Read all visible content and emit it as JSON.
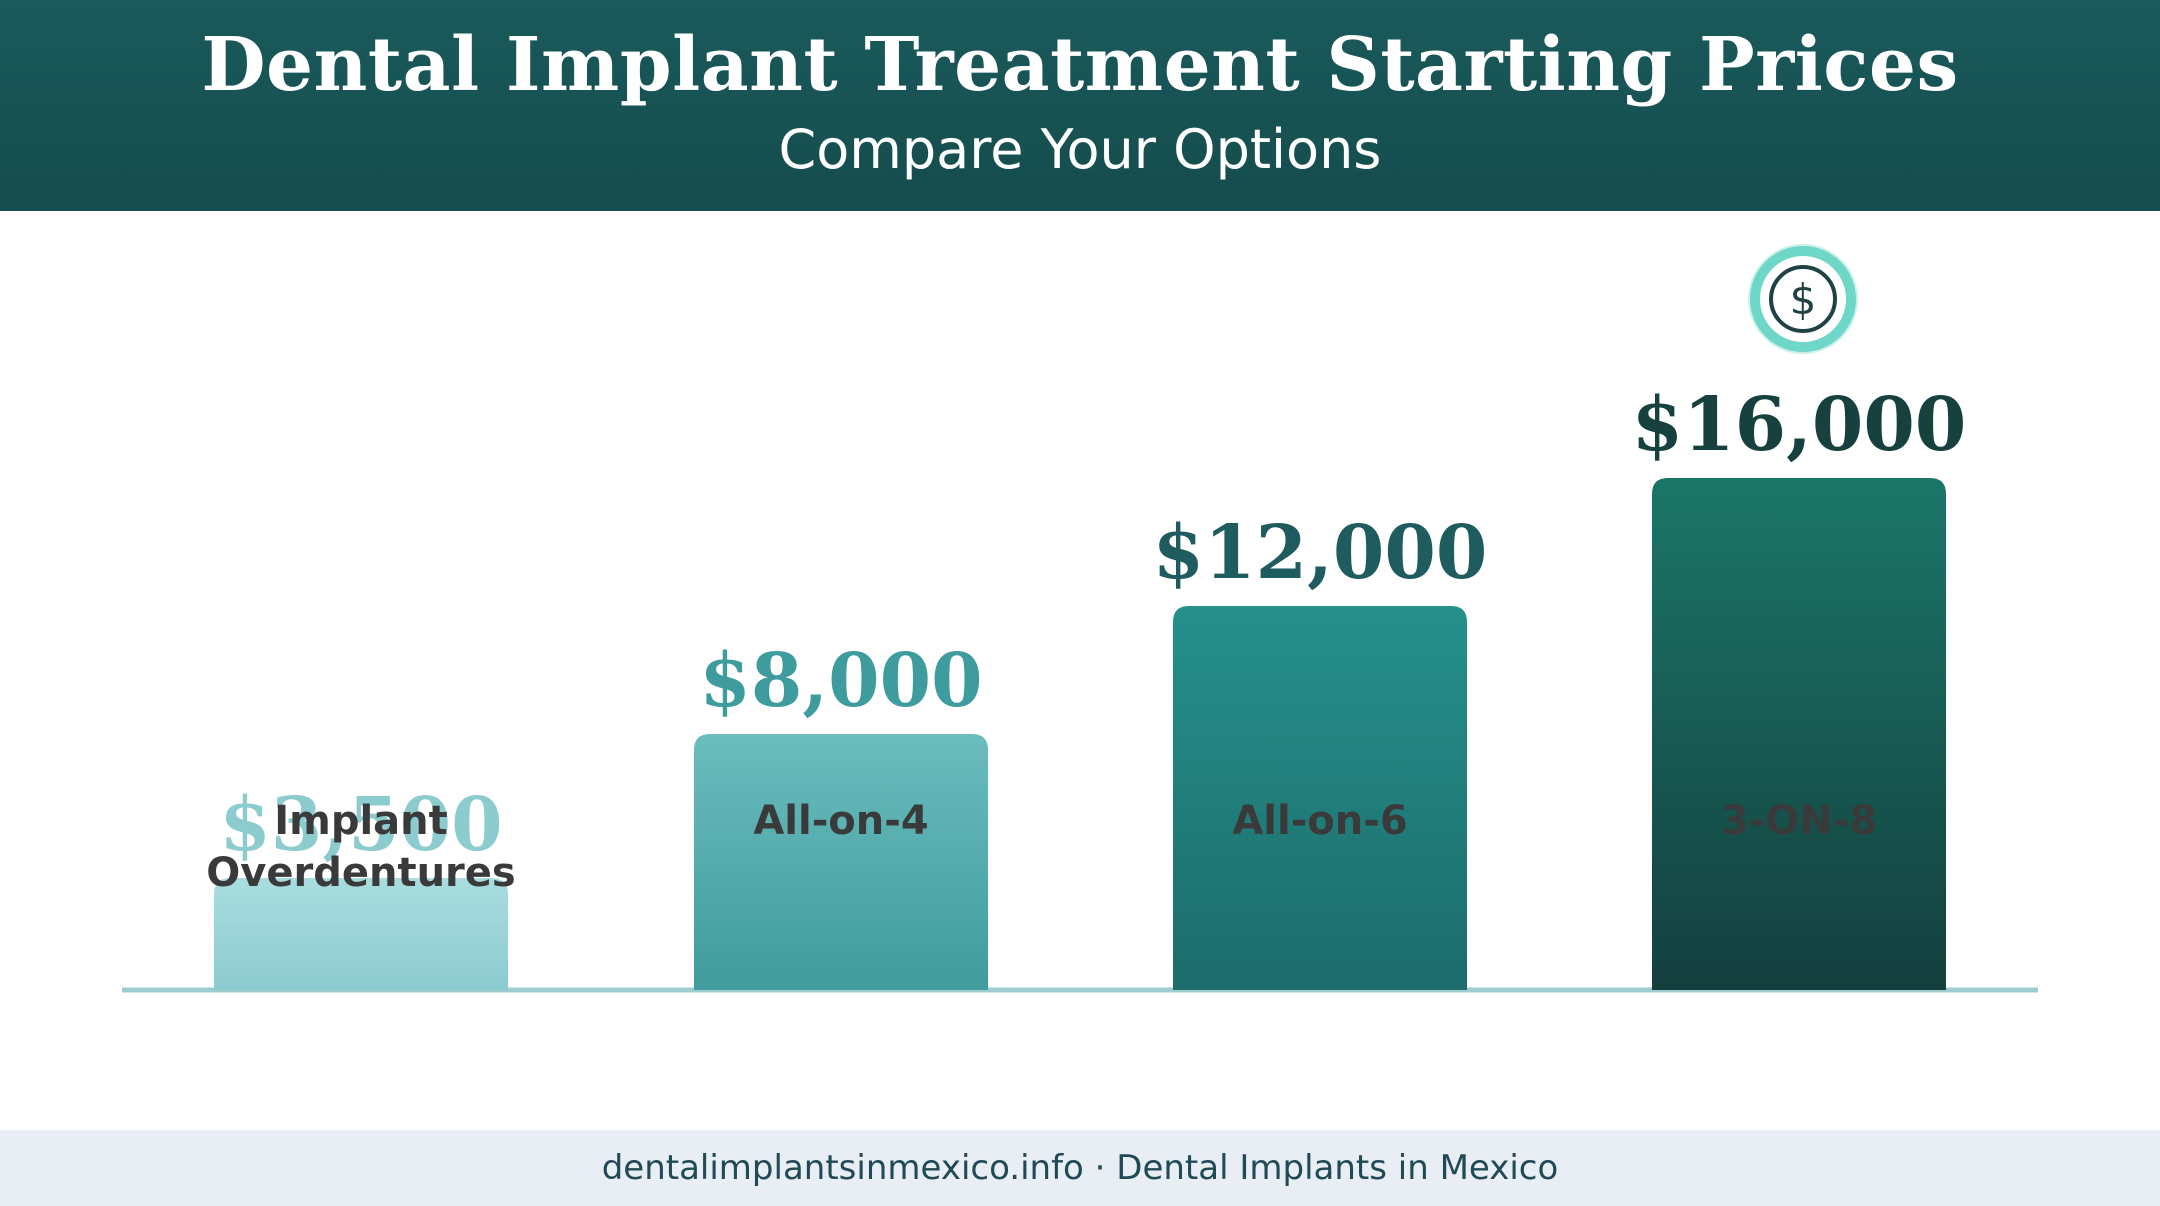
{
  "header": {
    "title": "Dental Implant Treatment Starting Prices",
    "subtitle": "Compare Your Options"
  },
  "chart_data": {
    "type": "bar",
    "categories": [
      [
        "Implant",
        "Overdentures"
      ],
      [
        "All-on-4"
      ],
      [
        "All-on-6"
      ],
      [
        "3-ON-8"
      ]
    ],
    "values": [
      3500,
      8000,
      12000,
      16000
    ],
    "value_labels": [
      "$3,500",
      "$8,000",
      "$12,000",
      "$16,000"
    ],
    "title": "Dental Implant Treatment Starting Prices",
    "subtitle": "Compare Your Options",
    "ylim": [
      0,
      16000
    ],
    "grid": false,
    "legend": "none",
    "highlight_icon": "dollar-circle-icon",
    "colors": {
      "bar_tops": [
        "#a9dde0",
        "#6bbcbd",
        "#26908c",
        "#1b7668"
      ],
      "bar_bottoms": [
        "#8ccbcf",
        "#3f9b9d",
        "#1c6c6b",
        "#143f3e"
      ],
      "label_colors": [
        "#8ccccf",
        "#3f9c9e",
        "#1f5c5f",
        "#16413f"
      ],
      "axis": "#9fcdcf",
      "category_text": "#3a3a3a",
      "icon_ring": "#6fd7c7"
    }
  },
  "footer": {
    "text": "dentalimplantsinmexico.info · Dental Implants in Mexico"
  }
}
